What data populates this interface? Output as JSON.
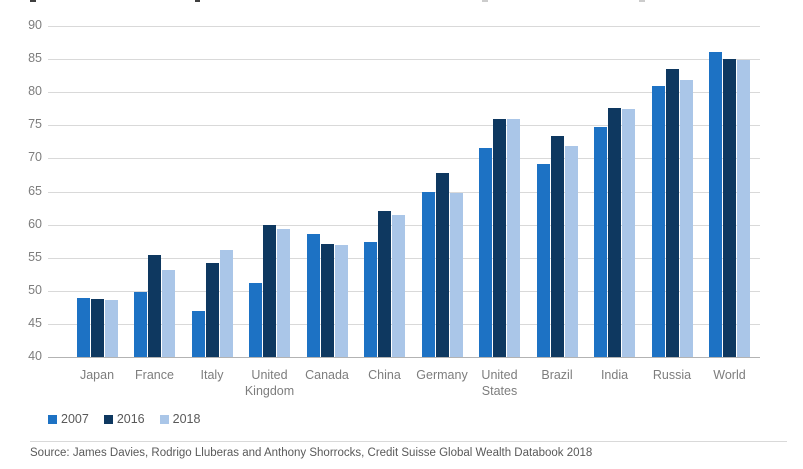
{
  "chart_data": {
    "type": "bar",
    "categories": [
      "Japan",
      "France",
      "Italy",
      "United Kingdom",
      "Canada",
      "China",
      "Germany",
      "United States",
      "Brazil",
      "India",
      "Russia",
      "World"
    ],
    "series": [
      {
        "name": "2007",
        "color": "#1d72c4",
        "values": [
          48.9,
          49.8,
          46.9,
          51.2,
          58.6,
          57.4,
          65.0,
          71.6,
          69.2,
          74.8,
          80.9,
          86.1
        ]
      },
      {
        "name": "2016",
        "color": "#0e3860",
        "values": [
          48.7,
          55.4,
          54.2,
          60.0,
          57.1,
          62.0,
          67.8,
          76.0,
          73.4,
          77.6,
          83.5,
          85.0
        ]
      },
      {
        "name": "2018",
        "color": "#aac6e8",
        "values": [
          48.6,
          53.2,
          56.1,
          59.4,
          56.9,
          61.5,
          64.7,
          75.9,
          71.9,
          77.4,
          81.8,
          84.8
        ]
      }
    ],
    "xlabel": "",
    "ylabel": "",
    "ylim": [
      40,
      90
    ],
    "yticks": [
      40,
      45,
      50,
      55,
      60,
      65,
      70,
      75,
      80,
      85,
      90
    ],
    "grid": "horizontal",
    "legend_position": "bottom-left"
  },
  "footer": {
    "source": "Source: James Davies, Rodrigo Lluberas and Anthony Shorrocks, Credit Suisse Global Wealth Databook 2018"
  }
}
